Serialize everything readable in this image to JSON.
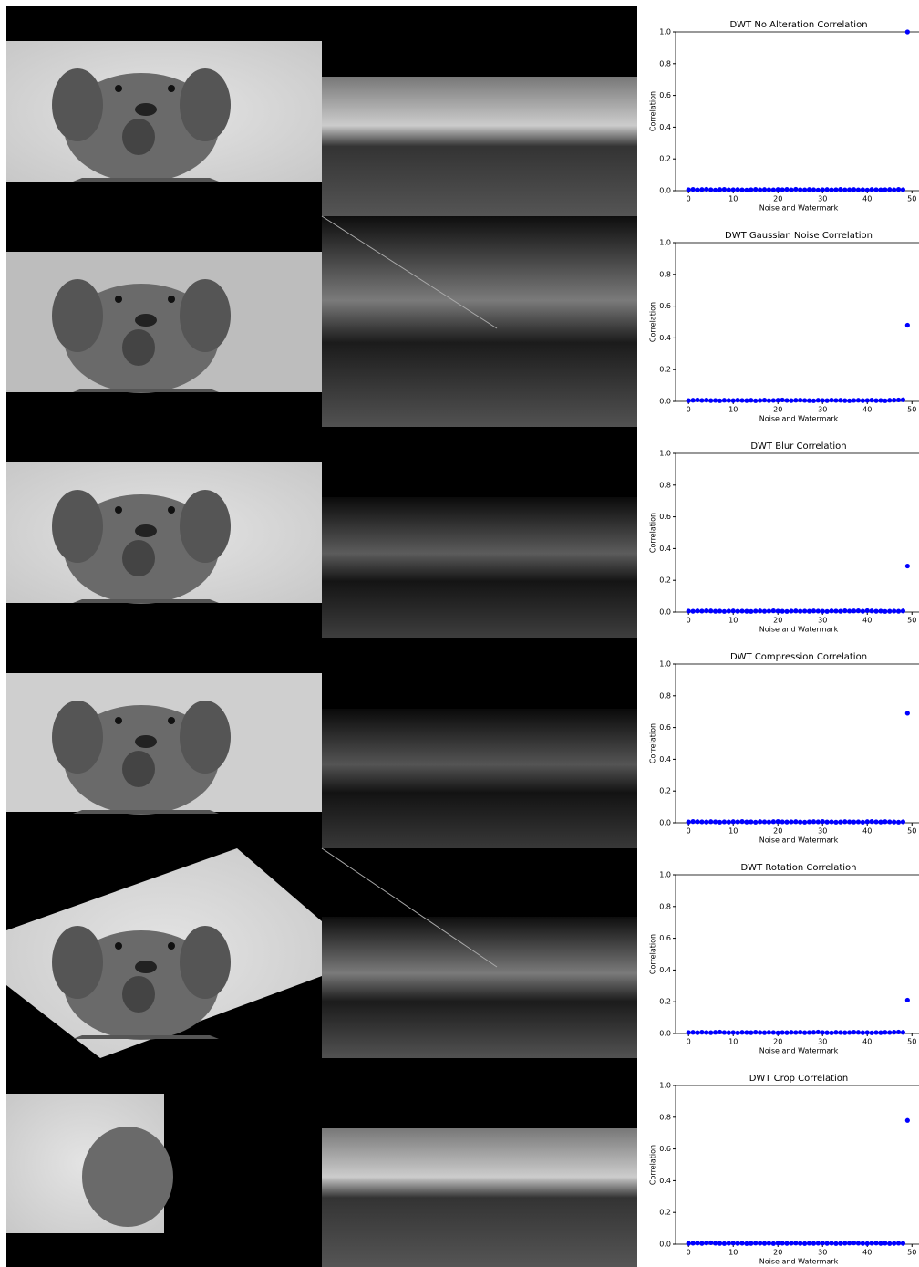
{
  "chart_data": [
    {
      "type": "scatter",
      "title": "DWT No Alteration Correlation",
      "xlabel": "Noise and Watermark",
      "ylabel": "Correlation",
      "color": "#0000ff",
      "x": [
        0,
        1,
        2,
        3,
        4,
        5,
        6,
        7,
        8,
        9,
        10,
        11,
        12,
        13,
        14,
        15,
        16,
        17,
        18,
        19,
        20,
        21,
        22,
        23,
        24,
        25,
        26,
        27,
        28,
        29,
        30,
        31,
        32,
        33,
        34,
        35,
        36,
        37,
        38,
        39,
        40,
        41,
        42,
        43,
        44,
        45,
        46,
        47,
        48,
        49
      ],
      "values": [
        0.006,
        0.008,
        0.005,
        0.007,
        0.009,
        0.006,
        0.004,
        0.007,
        0.008,
        0.005,
        0.006,
        0.007,
        0.005,
        0.004,
        0.006,
        0.008,
        0.005,
        0.007,
        0.006,
        0.005,
        0.007,
        0.006,
        0.008,
        0.005,
        0.009,
        0.006,
        0.005,
        0.007,
        0.006,
        0.004,
        0.006,
        0.007,
        0.005,
        0.006,
        0.008,
        0.005,
        0.006,
        0.007,
        0.005,
        0.006,
        0.004,
        0.007,
        0.006,
        0.005,
        0.006,
        0.007,
        0.005,
        0.008,
        0.006,
        1.0
      ],
      "xlim": [
        -2.9,
        52.5
      ],
      "ylim": [
        0,
        1
      ],
      "xticks": [
        0,
        10,
        20,
        30,
        40,
        50
      ],
      "yticks": [
        {
          "value": 0,
          "label": "0.0"
        },
        0.2,
        0.4,
        0.6,
        0.8,
        {
          "value": 1,
          "label": "1.0"
        }
      ]
    },
    {
      "type": "scatter",
      "title": "DWT Gaussian Noise Correlation",
      "xlabel": "Noise and Watermark",
      "ylabel": "Correlation",
      "color": "#0000ff",
      "x": [
        0,
        1,
        2,
        3,
        4,
        5,
        6,
        7,
        8,
        9,
        10,
        11,
        12,
        13,
        14,
        15,
        16,
        17,
        18,
        19,
        20,
        21,
        22,
        23,
        24,
        25,
        26,
        27,
        28,
        29,
        30,
        31,
        32,
        33,
        34,
        35,
        36,
        37,
        38,
        39,
        40,
        41,
        42,
        43,
        44,
        45,
        46,
        47,
        48,
        49
      ],
      "values": [
        0.005,
        0.007,
        0.009,
        0.006,
        0.008,
        0.005,
        0.006,
        0.004,
        0.007,
        0.006,
        0.005,
        0.008,
        0.006,
        0.005,
        0.007,
        0.004,
        0.006,
        0.008,
        0.005,
        0.006,
        0.007,
        0.009,
        0.006,
        0.005,
        0.007,
        0.008,
        0.006,
        0.005,
        0.004,
        0.007,
        0.006,
        0.005,
        0.008,
        0.006,
        0.007,
        0.005,
        0.004,
        0.006,
        0.007,
        0.005,
        0.006,
        0.008,
        0.005,
        0.006,
        0.004,
        0.007,
        0.008,
        0.009,
        0.01,
        0.48
      ],
      "xlim": [
        -2.9,
        52.5
      ],
      "ylim": [
        0,
        1
      ],
      "xticks": [
        0,
        10,
        20,
        30,
        40,
        50
      ],
      "yticks": [
        {
          "value": 0,
          "label": "0.0"
        },
        0.2,
        0.4,
        0.6,
        0.8,
        {
          "value": 1,
          "label": "1.0"
        }
      ]
    },
    {
      "type": "scatter",
      "title": "DWT Blur Correlation",
      "xlabel": "Noise and Watermark",
      "ylabel": "Correlation",
      "color": "#0000ff",
      "x": [
        0,
        1,
        2,
        3,
        4,
        5,
        6,
        7,
        8,
        9,
        10,
        11,
        12,
        13,
        14,
        15,
        16,
        17,
        18,
        19,
        20,
        21,
        22,
        23,
        24,
        25,
        26,
        27,
        28,
        29,
        30,
        31,
        32,
        33,
        34,
        35,
        36,
        37,
        38,
        39,
        40,
        41,
        42,
        43,
        44,
        45,
        46,
        47,
        48,
        49
      ],
      "values": [
        0.006,
        0.005,
        0.007,
        0.006,
        0.008,
        0.007,
        0.005,
        0.006,
        0.004,
        0.006,
        0.007,
        0.005,
        0.006,
        0.005,
        0.004,
        0.006,
        0.007,
        0.005,
        0.006,
        0.008,
        0.006,
        0.005,
        0.004,
        0.006,
        0.007,
        0.005,
        0.006,
        0.005,
        0.007,
        0.006,
        0.005,
        0.004,
        0.007,
        0.006,
        0.005,
        0.008,
        0.006,
        0.007,
        0.008,
        0.005,
        0.009,
        0.007,
        0.005,
        0.006,
        0.004,
        0.005,
        0.006,
        0.005,
        0.007,
        0.29
      ],
      "xlim": [
        -2.9,
        52.5
      ],
      "ylim": [
        0,
        1
      ],
      "xticks": [
        0,
        10,
        20,
        30,
        40,
        50
      ],
      "yticks": [
        {
          "value": 0,
          "label": "0.0"
        },
        0.2,
        0.4,
        0.6,
        0.8,
        {
          "value": 1,
          "label": "1.0"
        }
      ]
    },
    {
      "type": "scatter",
      "title": "DWT Compression Correlation",
      "xlabel": "Noise and Watermark",
      "ylabel": "Correlation",
      "color": "#0000ff",
      "x": [
        0,
        1,
        2,
        3,
        4,
        5,
        6,
        7,
        8,
        9,
        10,
        11,
        12,
        13,
        14,
        15,
        16,
        17,
        18,
        19,
        20,
        21,
        22,
        23,
        24,
        25,
        26,
        27,
        28,
        29,
        30,
        31,
        32,
        33,
        34,
        35,
        36,
        37,
        38,
        39,
        40,
        41,
        42,
        43,
        44,
        45,
        46,
        47,
        48,
        49
      ],
      "values": [
        0.005,
        0.008,
        0.007,
        0.006,
        0.005,
        0.007,
        0.006,
        0.004,
        0.006,
        0.005,
        0.007,
        0.006,
        0.008,
        0.005,
        0.006,
        0.004,
        0.007,
        0.006,
        0.005,
        0.007,
        0.008,
        0.006,
        0.005,
        0.006,
        0.007,
        0.005,
        0.004,
        0.006,
        0.007,
        0.006,
        0.008,
        0.005,
        0.006,
        0.004,
        0.005,
        0.007,
        0.006,
        0.005,
        0.006,
        0.004,
        0.007,
        0.008,
        0.006,
        0.005,
        0.007,
        0.006,
        0.005,
        0.004,
        0.006,
        0.69
      ],
      "xlim": [
        -2.9,
        52.5
      ],
      "ylim": [
        0,
        1
      ],
      "xticks": [
        0,
        10,
        20,
        30,
        40,
        50
      ],
      "yticks": [
        {
          "value": 0,
          "label": "0.0"
        },
        0.2,
        0.4,
        0.6,
        0.8,
        {
          "value": 1,
          "label": "1.0"
        }
      ]
    },
    {
      "type": "scatter",
      "title": "DWT Rotation Correlation",
      "xlabel": "Noise and Watermark",
      "ylabel": "Correlation",
      "color": "#0000ff",
      "x": [
        0,
        1,
        2,
        3,
        4,
        5,
        6,
        7,
        8,
        9,
        10,
        11,
        12,
        13,
        14,
        15,
        16,
        17,
        18,
        19,
        20,
        21,
        22,
        23,
        24,
        25,
        26,
        27,
        28,
        29,
        30,
        31,
        32,
        33,
        34,
        35,
        36,
        37,
        38,
        39,
        40,
        41,
        42,
        43,
        44,
        45,
        46,
        47,
        48,
        49
      ],
      "values": [
        0.006,
        0.007,
        0.005,
        0.008,
        0.006,
        0.005,
        0.007,
        0.009,
        0.006,
        0.005,
        0.006,
        0.004,
        0.007,
        0.006,
        0.005,
        0.008,
        0.006,
        0.005,
        0.007,
        0.006,
        0.004,
        0.006,
        0.005,
        0.007,
        0.006,
        0.008,
        0.005,
        0.006,
        0.007,
        0.009,
        0.006,
        0.005,
        0.004,
        0.007,
        0.006,
        0.005,
        0.006,
        0.008,
        0.007,
        0.005,
        0.006,
        0.004,
        0.006,
        0.005,
        0.007,
        0.006,
        0.008,
        0.009,
        0.007,
        0.21
      ],
      "xlim": [
        -2.9,
        52.5
      ],
      "ylim": [
        0,
        1
      ],
      "xticks": [
        0,
        10,
        20,
        30,
        40,
        50
      ],
      "yticks": [
        {
          "value": 0,
          "label": "0.0"
        },
        0.2,
        0.4,
        0.6,
        0.8,
        {
          "value": 1,
          "label": "1.0"
        }
      ]
    },
    {
      "type": "scatter",
      "title": "DWT Crop Correlation",
      "xlabel": "Noise and Watermark",
      "ylabel": "Correlation",
      "color": "#0000ff",
      "x": [
        0,
        1,
        2,
        3,
        4,
        5,
        6,
        7,
        8,
        9,
        10,
        11,
        12,
        13,
        14,
        15,
        16,
        17,
        18,
        19,
        20,
        21,
        22,
        23,
        24,
        25,
        26,
        27,
        28,
        29,
        30,
        31,
        32,
        33,
        34,
        35,
        36,
        37,
        38,
        39,
        40,
        41,
        42,
        43,
        44,
        45,
        46,
        47,
        48,
        49
      ],
      "values": [
        0.005,
        0.006,
        0.007,
        0.005,
        0.008,
        0.009,
        0.006,
        0.005,
        0.004,
        0.006,
        0.007,
        0.005,
        0.006,
        0.004,
        0.005,
        0.007,
        0.006,
        0.005,
        0.006,
        0.004,
        0.007,
        0.006,
        0.005,
        0.006,
        0.007,
        0.005,
        0.004,
        0.006,
        0.005,
        0.006,
        0.007,
        0.005,
        0.006,
        0.004,
        0.005,
        0.006,
        0.007,
        0.008,
        0.006,
        0.005,
        0.004,
        0.006,
        0.007,
        0.005,
        0.006,
        0.004,
        0.005,
        0.006,
        0.005,
        0.78
      ],
      "xlim": [
        -2.9,
        52.5
      ],
      "ylim": [
        0,
        1
      ],
      "xticks": [
        0,
        10,
        20,
        30,
        40,
        50
      ],
      "yticks": [
        {
          "value": 0,
          "label": "0.0"
        },
        0.2,
        0.4,
        0.6,
        0.8,
        {
          "value": 1,
          "label": "1.0"
        }
      ]
    }
  ]
}
